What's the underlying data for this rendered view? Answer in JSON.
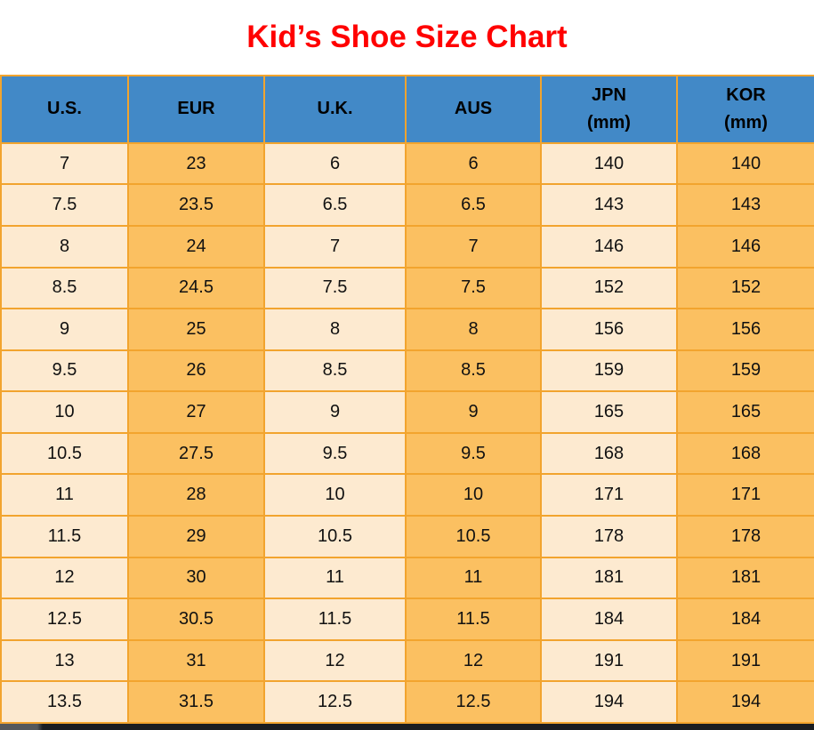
{
  "title": "Kid’s Shoe Size Chart",
  "colors": {
    "title_color": "#FF0000",
    "header_bg": "#4289C7",
    "header_text": "#000000",
    "row_light": "#FDEAD0",
    "row_orange": "#FBC061",
    "border": "#F2A42E",
    "cell_text": "#111111",
    "bottom_bar": "#1A1D21",
    "page_bg": "#FFFFFF"
  },
  "table": {
    "headers": [
      {
        "text": "U.S."
      },
      {
        "text": "EUR"
      },
      {
        "text": "U.K."
      },
      {
        "text": "AUS"
      },
      {
        "text": "JPN\n(mm)"
      },
      {
        "text": "KOR\n(mm)"
      }
    ]
  },
  "chart_data": {
    "type": "table",
    "title": "Kid’s Shoe Size Chart",
    "columns": [
      "U.S.",
      "EUR",
      "U.K.",
      "AUS",
      "JPN (mm)",
      "KOR (mm)"
    ],
    "rows": [
      [
        "7",
        "23",
        "6",
        "6",
        "140",
        "140"
      ],
      [
        "7.5",
        "23.5",
        "6.5",
        "6.5",
        "143",
        "143"
      ],
      [
        "8",
        "24",
        "7",
        "7",
        "146",
        "146"
      ],
      [
        "8.5",
        "24.5",
        "7.5",
        "7.5",
        "152",
        "152"
      ],
      [
        "9",
        "25",
        "8",
        "8",
        "156",
        "156"
      ],
      [
        "9.5",
        "26",
        "8.5",
        "8.5",
        "159",
        "159"
      ],
      [
        "10",
        "27",
        "9",
        "9",
        "165",
        "165"
      ],
      [
        "10.5",
        "27.5",
        "9.5",
        "9.5",
        "168",
        "168"
      ],
      [
        "11",
        "28",
        "10",
        "10",
        "171",
        "171"
      ],
      [
        "11.5",
        "29",
        "10.5",
        "10.5",
        "178",
        "178"
      ],
      [
        "12",
        "30",
        "11",
        "11",
        "181",
        "181"
      ],
      [
        "12.5",
        "30.5",
        "11.5",
        "11.5",
        "184",
        "184"
      ],
      [
        "13",
        "31",
        "12",
        "12",
        "191",
        "191"
      ],
      [
        "13.5",
        "31.5",
        "12.5",
        "12.5",
        "194",
        "194"
      ]
    ]
  }
}
